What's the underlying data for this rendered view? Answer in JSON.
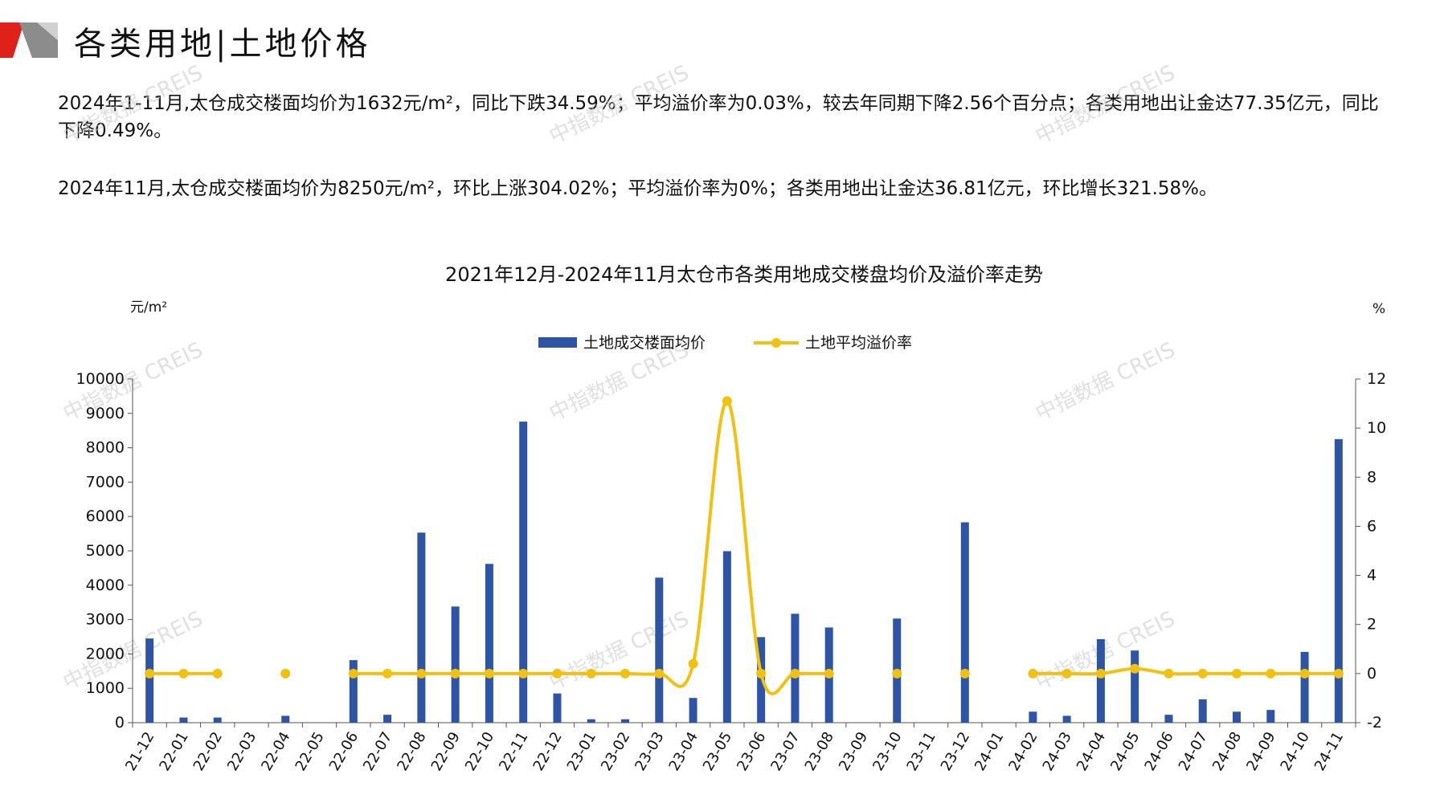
{
  "header": {
    "title": "各类用地|土地价格"
  },
  "paragraphs": [
    "2024年1-11月,太仓成交楼面均价为1632元/m²，同比下跌34.59%；平均溢价率为0.03%，较去年同期下降2.56个百分点；各类用地出让金达77.35亿元，同比下降0.49%。",
    "2024年11月,太仓成交楼面均价为8250元/m²，环比上涨304.02%；平均溢价率为0%；各类用地出让金达36.81亿元，环比增长321.58%。"
  ],
  "watermark_text": "中指数据 CREIS",
  "colors": {
    "bar": "#2E55A5",
    "line": "#F2C10F",
    "logo_red": "#E0201B",
    "logo_gray": "#8C8C8C"
  },
  "chart_data": {
    "type": "bar",
    "title": "2021年12月-2024年11月太仓市各类用地成交楼盘均价及溢价率走势",
    "ylabel_left": "元/m²",
    "ylabel_right": "%",
    "ylim_left": [
      0,
      10000
    ],
    "yticks_left": [
      0,
      1000,
      2000,
      3000,
      4000,
      5000,
      6000,
      7000,
      8000,
      9000,
      10000
    ],
    "ylim_right": [
      -2,
      12
    ],
    "yticks_right": [
      -2,
      0,
      2,
      4,
      6,
      8,
      10,
      12
    ],
    "legend_position": "top-center",
    "categories": [
      "21-12",
      "22-01",
      "22-02",
      "22-03",
      "22-04",
      "22-05",
      "22-06",
      "22-07",
      "22-08",
      "22-09",
      "22-10",
      "22-11",
      "22-12",
      "23-01",
      "23-02",
      "23-03",
      "23-04",
      "23-05",
      "23-06",
      "23-07",
      "23-08",
      "23-09",
      "23-10",
      "23-11",
      "23-12",
      "24-01",
      "24-02",
      "24-03",
      "24-04",
      "24-05",
      "24-06",
      "24-07",
      "24-08",
      "24-09",
      "24-10",
      "24-11"
    ],
    "series": [
      {
        "name": "土地成交楼面均价",
        "type": "bar",
        "axis": "left",
        "values": [
          2450,
          150,
          150,
          null,
          200,
          null,
          1820,
          230,
          5530,
          3380,
          4620,
          8760,
          850,
          100,
          100,
          4220,
          720,
          4990,
          2490,
          3170,
          2770,
          null,
          3030,
          null,
          5830,
          null,
          320,
          200,
          2430,
          2100,
          230,
          680,
          320,
          370,
          2060,
          8250
        ]
      },
      {
        "name": "土地平均溢价率",
        "type": "line",
        "axis": "right",
        "values": [
          0,
          0,
          0,
          null,
          0,
          null,
          0,
          0,
          0,
          0,
          0,
          0,
          0,
          0,
          0,
          0,
          0.4,
          11.1,
          0,
          0,
          0,
          null,
          0,
          null,
          0,
          null,
          0,
          0,
          0,
          0.2,
          0,
          0,
          0,
          0,
          0,
          0
        ]
      }
    ]
  }
}
